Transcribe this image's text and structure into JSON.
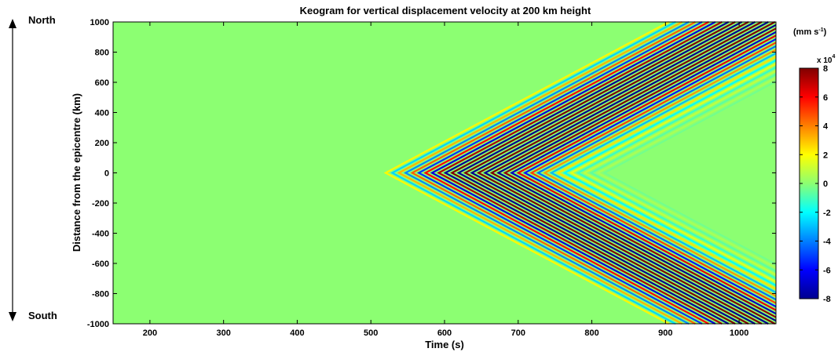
{
  "chart_data": {
    "type": "heatmap",
    "title": "Keogram for vertical displacement velocity at 200 km height",
    "xlabel": "Time (s)",
    "ylabel": "Distance from the epicentre (km)",
    "xlim": [
      150,
      1050
    ],
    "ylim": [
      -1000,
      1000
    ],
    "x_ticks": [
      200,
      300,
      400,
      500,
      600,
      700,
      800,
      900,
      1000
    ],
    "y_ticks": [
      1000,
      800,
      600,
      400,
      200,
      0,
      -200,
      -400,
      -600,
      -800,
      -1000
    ],
    "colorbar": {
      "unit_label": "(mm s",
      "unit_superscript": "-1",
      "unit_close": ")",
      "multiplier_base": "x 10",
      "multiplier_exp": "4",
      "range": [
        -8,
        8
      ],
      "ticks": [
        8,
        6,
        4,
        2,
        0,
        -2,
        -4,
        -6,
        -8
      ],
      "colormap": "jet"
    },
    "annotations": {
      "north": "North",
      "south": "South"
    },
    "wave_pattern": {
      "description_values": {
        "onset_time_at_epicentre": 520,
        "peak_time_at_epicentre": 640,
        "apparent_speed_km_per_s": 2.6,
        "period_s": 9,
        "max_amplitude": 80000
      }
    },
    "grid": false,
    "legend": "colorbar-right"
  }
}
